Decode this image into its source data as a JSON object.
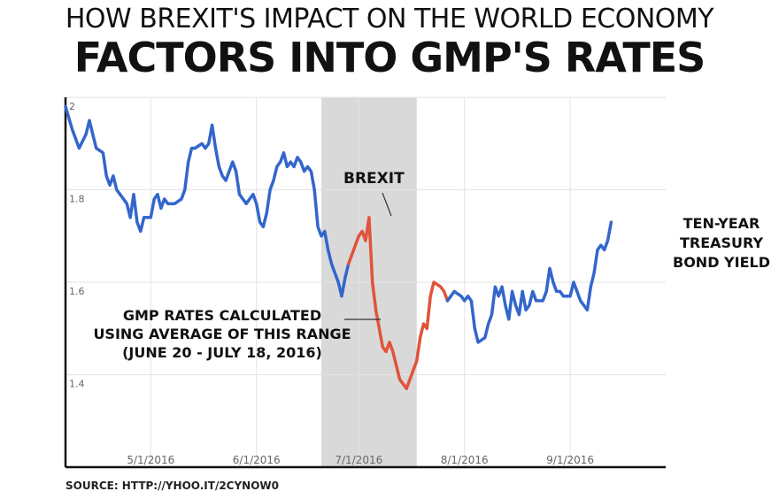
{
  "title": {
    "line1": "HOW BREXIT'S IMPACT ON THE WORLD ECONOMY",
    "line2_part1": "FACTORS INTO ",
    "line2_part2": "GMP'S RATES"
  },
  "source": "SOURCE: HTTP://YHOO.IT/2CYNOW0",
  "colors": {
    "line_blue": "#3366cc",
    "line_red": "#e0533a",
    "highlight": "#d9d9d9",
    "grid": "#e3e3e3",
    "axis": "#111111"
  },
  "chart_data": {
    "type": "line",
    "xlim": [
      "2016-04-06",
      "2016-09-29"
    ],
    "ylim": [
      1.2,
      2.0
    ],
    "yticks": [
      {
        "value": 2.0,
        "label": "2"
      },
      {
        "value": 1.8,
        "label": "1.8"
      },
      {
        "value": 1.6,
        "label": "1.6"
      },
      {
        "value": 1.4,
        "label": "1.4"
      }
    ],
    "xticks": [
      {
        "date": "2016-05-01",
        "label": "5/1/2016"
      },
      {
        "date": "2016-06-01",
        "label": "6/1/2016"
      },
      {
        "date": "2016-07-01",
        "label": "7/1/2016"
      },
      {
        "date": "2016-08-01",
        "label": "8/1/2016"
      },
      {
        "date": "2016-09-01",
        "label": "9/1/2016"
      }
    ],
    "highlight_range": [
      "2016-06-20",
      "2016-07-18"
    ],
    "grid": true,
    "series": [
      {
        "name": "TEN-YEAR TREASURY BOND YIELD",
        "points": [
          [
            "2016-04-06",
            1.98
          ],
          [
            "2016-04-08",
            1.93
          ],
          [
            "2016-04-10",
            1.89
          ],
          [
            "2016-04-12",
            1.92
          ],
          [
            "2016-04-13",
            1.95
          ],
          [
            "2016-04-14",
            1.92
          ],
          [
            "2016-04-15",
            1.89
          ],
          [
            "2016-04-17",
            1.88
          ],
          [
            "2016-04-18",
            1.83
          ],
          [
            "2016-04-19",
            1.81
          ],
          [
            "2016-04-20",
            1.83
          ],
          [
            "2016-04-21",
            1.8
          ],
          [
            "2016-04-23",
            1.78
          ],
          [
            "2016-04-24",
            1.77
          ],
          [
            "2016-04-25",
            1.74
          ],
          [
            "2016-04-26",
            1.79
          ],
          [
            "2016-04-27",
            1.73
          ],
          [
            "2016-04-28",
            1.71
          ],
          [
            "2016-04-29",
            1.74
          ],
          [
            "2016-05-01",
            1.74
          ],
          [
            "2016-05-02",
            1.78
          ],
          [
            "2016-05-03",
            1.79
          ],
          [
            "2016-05-04",
            1.76
          ],
          [
            "2016-05-05",
            1.78
          ],
          [
            "2016-05-06",
            1.77
          ],
          [
            "2016-05-08",
            1.77
          ],
          [
            "2016-05-10",
            1.78
          ],
          [
            "2016-05-11",
            1.8
          ],
          [
            "2016-05-12",
            1.86
          ],
          [
            "2016-05-13",
            1.89
          ],
          [
            "2016-05-14",
            1.89
          ],
          [
            "2016-05-16",
            1.9
          ],
          [
            "2016-05-17",
            1.89
          ],
          [
            "2016-05-18",
            1.9
          ],
          [
            "2016-05-19",
            1.94
          ],
          [
            "2016-05-20",
            1.89
          ],
          [
            "2016-05-21",
            1.85
          ],
          [
            "2016-05-22",
            1.83
          ],
          [
            "2016-05-23",
            1.82
          ],
          [
            "2016-05-24",
            1.84
          ],
          [
            "2016-05-25",
            1.86
          ],
          [
            "2016-05-26",
            1.84
          ],
          [
            "2016-05-27",
            1.79
          ],
          [
            "2016-05-29",
            1.77
          ],
          [
            "2016-05-30",
            1.78
          ],
          [
            "2016-05-31",
            1.79
          ],
          [
            "2016-06-01",
            1.77
          ],
          [
            "2016-06-02",
            1.73
          ],
          [
            "2016-06-03",
            1.72
          ],
          [
            "2016-06-04",
            1.75
          ],
          [
            "2016-06-05",
            1.8
          ],
          [
            "2016-06-06",
            1.82
          ],
          [
            "2016-06-07",
            1.85
          ],
          [
            "2016-06-08",
            1.86
          ],
          [
            "2016-06-09",
            1.88
          ],
          [
            "2016-06-10",
            1.85
          ],
          [
            "2016-06-11",
            1.86
          ],
          [
            "2016-06-12",
            1.85
          ],
          [
            "2016-06-13",
            1.87
          ],
          [
            "2016-06-14",
            1.86
          ],
          [
            "2016-06-15",
            1.84
          ],
          [
            "2016-06-16",
            1.85
          ],
          [
            "2016-06-17",
            1.84
          ],
          [
            "2016-06-18",
            1.8
          ],
          [
            "2016-06-19",
            1.72
          ],
          [
            "2016-06-20",
            1.7
          ],
          [
            "2016-06-21",
            1.71
          ],
          [
            "2016-06-22",
            1.67
          ],
          [
            "2016-06-23",
            1.64
          ],
          [
            "2016-06-24",
            1.62
          ],
          [
            "2016-06-25",
            1.6
          ],
          [
            "2016-06-26",
            1.57
          ],
          [
            "2016-06-27",
            1.61
          ],
          [
            "2016-06-28",
            1.64
          ]
        ]
      },
      {
        "name": "GMP RATES CALCULATED USING AVERAGE OF THIS RANGE (JUNE 20 - JULY 18, 2016)",
        "points": [
          [
            "2016-06-28",
            1.64
          ],
          [
            "2016-06-29",
            1.66
          ],
          [
            "2016-06-30",
            1.68
          ],
          [
            "2016-07-01",
            1.7
          ],
          [
            "2016-07-02",
            1.71
          ],
          [
            "2016-07-03",
            1.69
          ],
          [
            "2016-07-04",
            1.74
          ],
          [
            "2016-07-05",
            1.6
          ],
          [
            "2016-07-06",
            1.54
          ],
          [
            "2016-07-07",
            1.5
          ],
          [
            "2016-07-08",
            1.46
          ],
          [
            "2016-07-09",
            1.45
          ],
          [
            "2016-07-10",
            1.47
          ],
          [
            "2016-07-11",
            1.45
          ],
          [
            "2016-07-12",
            1.42
          ],
          [
            "2016-07-13",
            1.39
          ],
          [
            "2016-07-14",
            1.38
          ],
          [
            "2016-07-15",
            1.37
          ],
          [
            "2016-07-16",
            1.39
          ],
          [
            "2016-07-17",
            1.41
          ],
          [
            "2016-07-18",
            1.43
          ],
          [
            "2016-07-19",
            1.48
          ],
          [
            "2016-07-20",
            1.51
          ],
          [
            "2016-07-21",
            1.5
          ],
          [
            "2016-07-22",
            1.57
          ],
          [
            "2016-07-23",
            1.6
          ],
          [
            "2016-07-25",
            1.59
          ],
          [
            "2016-07-26",
            1.58
          ],
          [
            "2016-07-27",
            1.56
          ]
        ]
      },
      {
        "name": "TEN-YEAR TREASURY BOND YIELD",
        "points": [
          [
            "2016-07-27",
            1.56
          ],
          [
            "2016-07-29",
            1.58
          ],
          [
            "2016-07-31",
            1.57
          ],
          [
            "2016-08-01",
            1.56
          ],
          [
            "2016-08-02",
            1.57
          ],
          [
            "2016-08-03",
            1.56
          ],
          [
            "2016-08-04",
            1.5
          ],
          [
            "2016-08-05",
            1.47
          ],
          [
            "2016-08-07",
            1.48
          ],
          [
            "2016-08-08",
            1.51
          ],
          [
            "2016-08-09",
            1.53
          ],
          [
            "2016-08-10",
            1.59
          ],
          [
            "2016-08-11",
            1.57
          ],
          [
            "2016-08-12",
            1.59
          ],
          [
            "2016-08-13",
            1.55
          ],
          [
            "2016-08-14",
            1.52
          ],
          [
            "2016-08-15",
            1.58
          ],
          [
            "2016-08-16",
            1.55
          ],
          [
            "2016-08-17",
            1.53
          ],
          [
            "2016-08-18",
            1.58
          ],
          [
            "2016-08-19",
            1.54
          ],
          [
            "2016-08-20",
            1.55
          ],
          [
            "2016-08-21",
            1.58
          ],
          [
            "2016-08-22",
            1.56
          ],
          [
            "2016-08-24",
            1.56
          ],
          [
            "2016-08-25",
            1.58
          ],
          [
            "2016-08-26",
            1.63
          ],
          [
            "2016-08-27",
            1.6
          ],
          [
            "2016-08-28",
            1.58
          ],
          [
            "2016-08-29",
            1.58
          ],
          [
            "2016-08-30",
            1.57
          ],
          [
            "2016-09-01",
            1.57
          ],
          [
            "2016-09-02",
            1.6
          ],
          [
            "2016-09-03",
            1.58
          ],
          [
            "2016-09-04",
            1.56
          ],
          [
            "2016-09-06",
            1.54
          ],
          [
            "2016-09-07",
            1.59
          ],
          [
            "2016-09-08",
            1.62
          ],
          [
            "2016-09-09",
            1.67
          ],
          [
            "2016-09-10",
            1.68
          ],
          [
            "2016-09-11",
            1.67
          ],
          [
            "2016-09-12",
            1.69
          ],
          [
            "2016-09-13",
            1.73
          ]
        ]
      }
    ],
    "annotations": {
      "brexit": "BREXIT",
      "gmp_line1": "GMP RATES CALCULATED",
      "gmp_line2": "USING AVERAGE OF THIS RANGE",
      "gmp_line3": "(JUNE 20 - JULY 18, 2016)",
      "yield_line1": "TEN-YEAR",
      "yield_line2": "TREASURY",
      "yield_line3": "BOND YIELD"
    }
  }
}
